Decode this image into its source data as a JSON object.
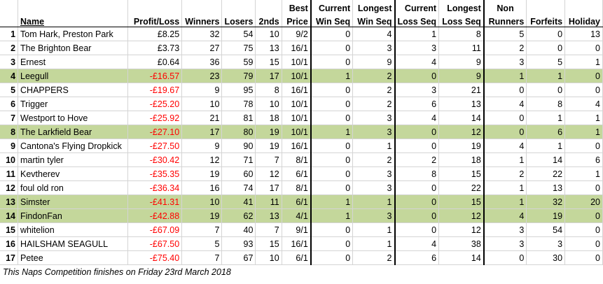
{
  "headers": {
    "name": "Name",
    "profit": "Profit/Loss",
    "winners": "Winners",
    "losers": "Losers",
    "seconds": "2nds",
    "best_1": "Best",
    "best_2": "Price",
    "cws_1": "Current",
    "cws_2": "Win Seq",
    "lws_1": "Longest",
    "lws_2": "Win Seq",
    "cls_1": "Current",
    "cls_2": "Loss Seq",
    "lls_1": "Longest",
    "lls_2": "Loss Seq",
    "nr_1": "Non",
    "nr_2": "Runners",
    "forfeits": "Forfeits",
    "holiday": "Holiday"
  },
  "colors": {
    "highlight": "#c4d79b",
    "negative": "#ff0000"
  },
  "rows": [
    {
      "rank": "1",
      "name": "Tom Hark, Preston Park",
      "profit": "£8.25",
      "winners": "32",
      "losers": "54",
      "seconds": "10",
      "best": "9/2",
      "cws": "0",
      "lws": "4",
      "cls": "1",
      "lls": "8",
      "nr": "5",
      "forfeits": "0",
      "holiday": "13",
      "hl": false,
      "neg": false
    },
    {
      "rank": "2",
      "name": "The Brighton Bear",
      "profit": "£3.73",
      "winners": "27",
      "losers": "75",
      "seconds": "13",
      "best": "16/1",
      "cws": "0",
      "lws": "3",
      "cls": "3",
      "lls": "11",
      "nr": "2",
      "forfeits": "0",
      "holiday": "0",
      "hl": false,
      "neg": false
    },
    {
      "rank": "3",
      "name": "Ernest",
      "profit": "£0.64",
      "winners": "36",
      "losers": "59",
      "seconds": "15",
      "best": "10/1",
      "cws": "0",
      "lws": "9",
      "cls": "4",
      "lls": "9",
      "nr": "3",
      "forfeits": "5",
      "holiday": "1",
      "hl": false,
      "neg": false
    },
    {
      "rank": "4",
      "name": "Leegull",
      "profit": "-£16.57",
      "winners": "23",
      "losers": "79",
      "seconds": "17",
      "best": "10/1",
      "cws": "1",
      "lws": "2",
      "cls": "0",
      "lls": "9",
      "nr": "1",
      "forfeits": "1",
      "holiday": "0",
      "hl": true,
      "neg": true
    },
    {
      "rank": "5",
      "name": "CHAPPERS",
      "profit": "-£19.67",
      "winners": "9",
      "losers": "95",
      "seconds": "8",
      "best": "16/1",
      "cws": "0",
      "lws": "2",
      "cls": "3",
      "lls": "21",
      "nr": "0",
      "forfeits": "0",
      "holiday": "0",
      "hl": false,
      "neg": true
    },
    {
      "rank": "6",
      "name": "Trigger",
      "profit": "-£25.20",
      "winners": "10",
      "losers": "78",
      "seconds": "10",
      "best": "10/1",
      "cws": "0",
      "lws": "2",
      "cls": "6",
      "lls": "13",
      "nr": "4",
      "forfeits": "8",
      "holiday": "4",
      "hl": false,
      "neg": true
    },
    {
      "rank": "7",
      "name": "Westport to Hove",
      "profit": "-£25.92",
      "winners": "21",
      "losers": "81",
      "seconds": "18",
      "best": "10/1",
      "cws": "0",
      "lws": "3",
      "cls": "4",
      "lls": "14",
      "nr": "0",
      "forfeits": "1",
      "holiday": "1",
      "hl": false,
      "neg": true
    },
    {
      "rank": "8",
      "name": "The Larkfield Bear",
      "profit": "-£27.10",
      "winners": "17",
      "losers": "80",
      "seconds": "19",
      "best": "10/1",
      "cws": "1",
      "lws": "3",
      "cls": "0",
      "lls": "12",
      "nr": "0",
      "forfeits": "6",
      "holiday": "1",
      "hl": true,
      "neg": true
    },
    {
      "rank": "9",
      "name": "Cantona's Flying Dropkick",
      "profit": "-£27.50",
      "winners": "9",
      "losers": "90",
      "seconds": "19",
      "best": "16/1",
      "cws": "0",
      "lws": "1",
      "cls": "0",
      "lls": "19",
      "nr": "4",
      "forfeits": "1",
      "holiday": "0",
      "hl": false,
      "neg": true
    },
    {
      "rank": "10",
      "name": "martin tyler",
      "profit": "-£30.42",
      "winners": "12",
      "losers": "71",
      "seconds": "7",
      "best": "8/1",
      "cws": "0",
      "lws": "2",
      "cls": "2",
      "lls": "18",
      "nr": "1",
      "forfeits": "14",
      "holiday": "6",
      "hl": false,
      "neg": true
    },
    {
      "rank": "11",
      "name": "Kevtherev",
      "profit": "-£35.35",
      "winners": "19",
      "losers": "60",
      "seconds": "12",
      "best": "6/1",
      "cws": "0",
      "lws": "3",
      "cls": "8",
      "lls": "15",
      "nr": "2",
      "forfeits": "22",
      "holiday": "1",
      "hl": false,
      "neg": true
    },
    {
      "rank": "12",
      "name": "foul old ron",
      "profit": "-£36.34",
      "winners": "16",
      "losers": "74",
      "seconds": "17",
      "best": "8/1",
      "cws": "0",
      "lws": "3",
      "cls": "0",
      "lls": "22",
      "nr": "1",
      "forfeits": "13",
      "holiday": "0",
      "hl": false,
      "neg": true
    },
    {
      "rank": "13",
      "name": "Simster",
      "profit": "-£41.31",
      "winners": "10",
      "losers": "41",
      "seconds": "11",
      "best": "6/1",
      "cws": "1",
      "lws": "1",
      "cls": "0",
      "lls": "15",
      "nr": "1",
      "forfeits": "32",
      "holiday": "20",
      "hl": true,
      "neg": true
    },
    {
      "rank": "14",
      "name": "FindonFan",
      "profit": "-£42.88",
      "winners": "19",
      "losers": "62",
      "seconds": "13",
      "best": "4/1",
      "cws": "1",
      "lws": "3",
      "cls": "0",
      "lls": "12",
      "nr": "4",
      "forfeits": "19",
      "holiday": "0",
      "hl": true,
      "neg": true
    },
    {
      "rank": "15",
      "name": "whitelion",
      "profit": "-£67.09",
      "winners": "7",
      "losers": "40",
      "seconds": "7",
      "best": "9/1",
      "cws": "0",
      "lws": "1",
      "cls": "0",
      "lls": "12",
      "nr": "3",
      "forfeits": "54",
      "holiday": "0",
      "hl": false,
      "neg": true
    },
    {
      "rank": "16",
      "name": "HAILSHAM SEAGULL",
      "profit": "-£67.50",
      "winners": "5",
      "losers": "93",
      "seconds": "15",
      "best": "16/1",
      "cws": "0",
      "lws": "1",
      "cls": "4",
      "lls": "38",
      "nr": "3",
      "forfeits": "3",
      "holiday": "0",
      "hl": false,
      "neg": true
    },
    {
      "rank": "17",
      "name": "Petee",
      "profit": "-£75.40",
      "winners": "7",
      "losers": "67",
      "seconds": "10",
      "best": "6/1",
      "cws": "0",
      "lws": "2",
      "cls": "6",
      "lls": "14",
      "nr": "0",
      "forfeits": "30",
      "holiday": "0",
      "hl": false,
      "neg": true
    }
  ],
  "footer": "This Naps Competition finishes on Friday 23rd March 2018"
}
